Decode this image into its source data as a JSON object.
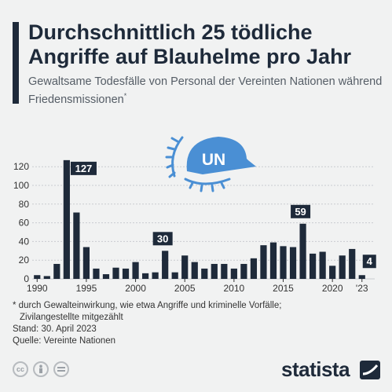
{
  "header": {
    "title": "Durchschnittlich 25 tödliche Angriffe auf Blauhelme pro Jahr",
    "subtitle": "Gewaltsame Todesfälle von Personal der Vereinten Nationen während Friedensmissionen",
    "subtitle_mark": "*"
  },
  "chart_data": {
    "type": "bar",
    "x": [
      1990,
      1991,
      1992,
      1993,
      1994,
      1995,
      1996,
      1997,
      1998,
      1999,
      2000,
      2001,
      2002,
      2003,
      2004,
      2005,
      2006,
      2007,
      2008,
      2009,
      2010,
      2011,
      2012,
      2013,
      2014,
      2015,
      2016,
      2017,
      2018,
      2019,
      2020,
      2021,
      2022,
      2023
    ],
    "values": [
      4,
      3,
      16,
      127,
      71,
      34,
      11,
      5,
      12,
      11,
      18,
      6,
      7,
      30,
      7,
      25,
      18,
      11,
      16,
      16,
      11,
      16,
      22,
      36,
      39,
      35,
      34,
      59,
      27,
      29,
      14,
      25,
      32,
      4
    ],
    "x_tick_labels": [
      "1990",
      "1995",
      "2000",
      "2005",
      "2010",
      "2015",
      "2020",
      "'23"
    ],
    "x_tick_years": [
      1990,
      1995,
      2000,
      2005,
      2010,
      2015,
      2020,
      2023
    ],
    "y_ticks": [
      0,
      20,
      40,
      60,
      80,
      100,
      120
    ],
    "ylim": [
      0,
      127
    ],
    "grid": "horizontal",
    "bar_color": "#1e2a3a",
    "callouts": [
      {
        "year": 1993,
        "label": "127"
      },
      {
        "year": 2003,
        "label": "30"
      },
      {
        "year": 2017,
        "label": "59"
      },
      {
        "year": 2023,
        "label": "4"
      }
    ],
    "logo_text": "UN",
    "logo_color": "#4a8fd4"
  },
  "footnote": {
    "line1": "* durch Gewalteinwirkung, wie etwa Angriffe und kriminelle Vorfälle;",
    "line2": "Zivilangestellte mitgezählt",
    "line3": "Stand: 30. April 2023",
    "line4": "Quelle: Vereinte Nationen"
  },
  "license_icons": [
    "cc-icon",
    "person-icon",
    "equals-icon"
  ],
  "brand": {
    "name": "statista"
  }
}
